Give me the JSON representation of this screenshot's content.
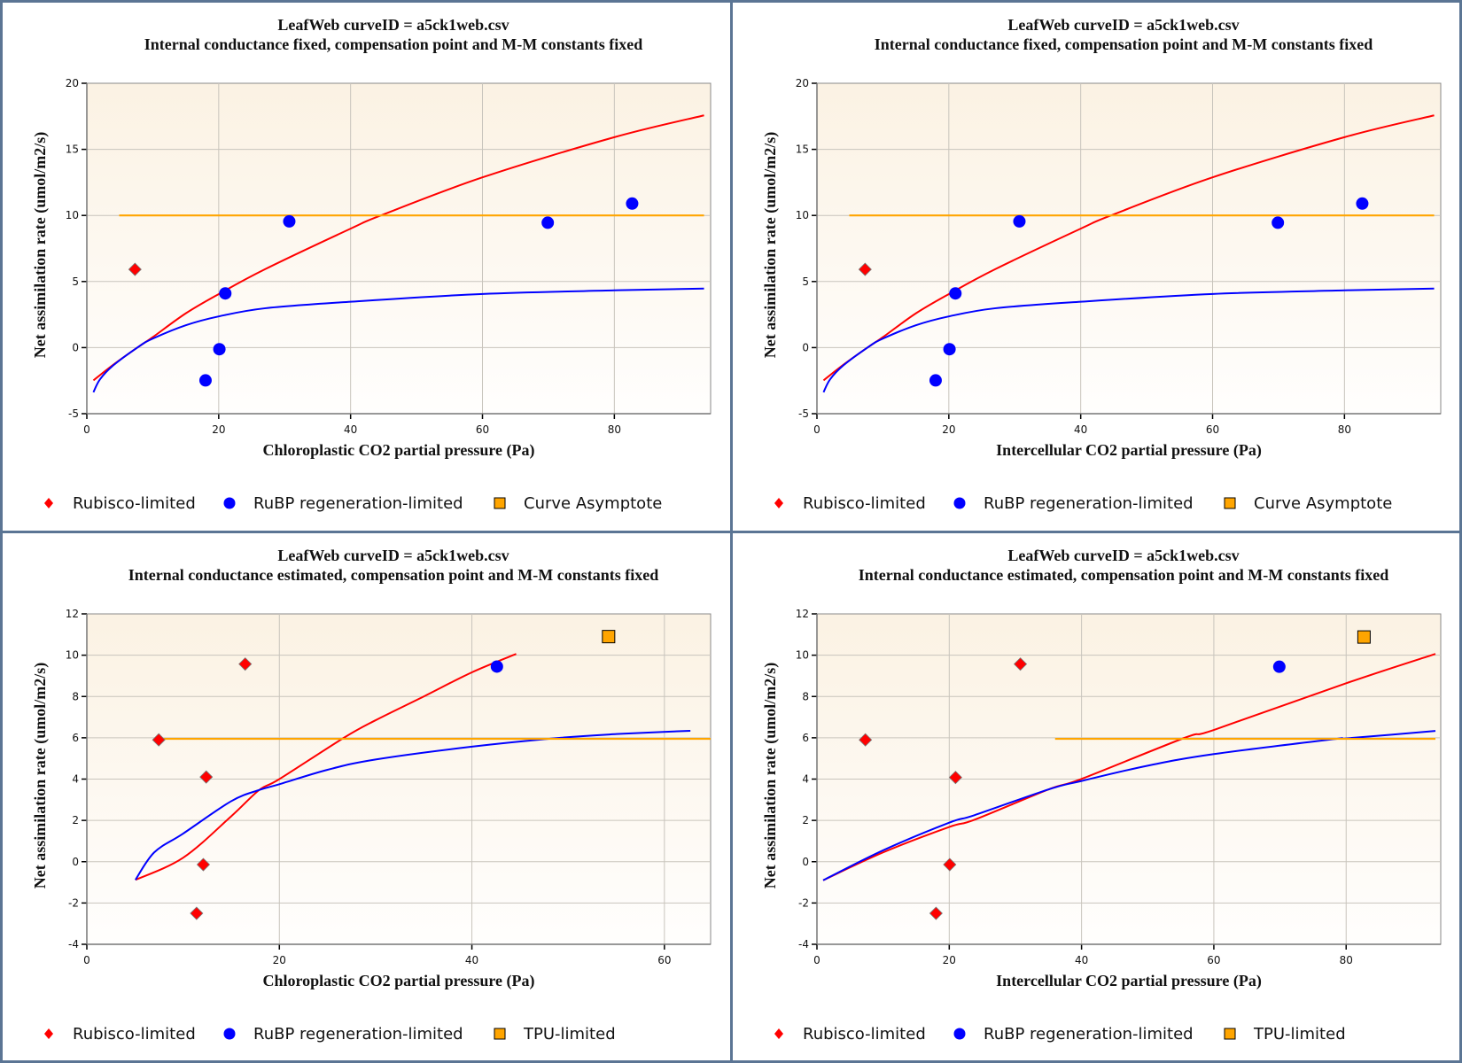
{
  "colors": {
    "frame": "#5b7594",
    "rubisco": "#ff0000",
    "rubp": "#0000ff",
    "asymptote": "#ffa500",
    "grid": "#c8c4bc",
    "plot_bg_top": "#fbf2e3",
    "plot_bg_bottom": "#fffefd"
  },
  "chart_data": [
    {
      "type": "scatter",
      "title": "LeafWeb curveID = a5ck1web.csv",
      "subtitle": "Internal conductance fixed, compensation point and M-M constants fixed",
      "xlabel": "Chloroplastic CO2 partial pressure (Pa)",
      "ylabel": "Net assimilation rate (umol/m2/s)",
      "xlim": [
        0,
        94.6
      ],
      "ylim": [
        -5,
        20
      ],
      "xticks": [
        0,
        20,
        40,
        60,
        80
      ],
      "yticks": [
        -5,
        0,
        5,
        10,
        15,
        20
      ],
      "grid": true,
      "legend_position": "bottom",
      "legend": [
        {
          "label": "Rubisco-limited",
          "marker": "diamond",
          "color": "#ff0000"
        },
        {
          "label": "RuBP regeneration-limited",
          "marker": "circle",
          "color": "#0000ff"
        },
        {
          "label": "Curve Asymptote",
          "marker": "square",
          "color": "#ffa500"
        }
      ],
      "points": [
        {
          "series": "Rubisco-limited",
          "x": 7.3,
          "y": 5.92
        },
        {
          "series": "RuBP regeneration-limited",
          "x": 18.0,
          "y": -2.48
        },
        {
          "series": "RuBP regeneration-limited",
          "x": 20.1,
          "y": -0.12
        },
        {
          "series": "RuBP regeneration-limited",
          "x": 21.0,
          "y": 4.1
        },
        {
          "series": "RuBP regeneration-limited",
          "x": 30.7,
          "y": 9.55
        },
        {
          "series": "RuBP regeneration-limited",
          "x": 69.9,
          "y": 9.45
        },
        {
          "series": "RuBP regeneration-limited",
          "x": 82.7,
          "y": 10.9
        }
      ],
      "lines": [
        {
          "name": "Rubisco-limited fit",
          "color": "#ff0000",
          "x": [
            1.0,
            4,
            7.8,
            10,
            15,
            20,
            27.1,
            40,
            44.6,
            60,
            80,
            93.6
          ],
          "y": [
            -2.48,
            -1.3,
            0.05,
            0.79,
            2.59,
            4.05,
            5.95,
            9.0,
            10.0,
            12.88,
            15.92,
            17.57
          ]
        },
        {
          "name": "RuBP regeneration-limited fit",
          "color": "#0000ff",
          "x": [
            1.0,
            2,
            4,
            7.8,
            10,
            15,
            20,
            27.1,
            40,
            60,
            80,
            93.6
          ],
          "y": [
            -3.38,
            -2.4,
            -1.35,
            0.05,
            0.68,
            1.69,
            2.36,
            2.98,
            3.47,
            4.06,
            4.33,
            4.47
          ]
        },
        {
          "name": "Curve Asymptote",
          "color": "#ffa500",
          "x": [
            4.9,
            93.6
          ],
          "y": [
            10,
            10
          ]
        }
      ]
    },
    {
      "type": "scatter",
      "title": "LeafWeb curveID = a5ck1web.csv",
      "subtitle": "Internal conductance fixed, compensation point and M-M constants fixed",
      "xlabel": "Intercellular CO2 partial pressure (Pa)",
      "ylabel": "Net assimilation rate (umol/m2/s)",
      "xlim": [
        0,
        94.6
      ],
      "ylim": [
        -5,
        20
      ],
      "xticks": [
        0,
        20,
        40,
        60,
        80
      ],
      "yticks": [
        -5,
        0,
        5,
        10,
        15,
        20
      ],
      "grid": true,
      "legend_position": "bottom",
      "legend": [
        {
          "label": "Rubisco-limited",
          "marker": "diamond",
          "color": "#ff0000"
        },
        {
          "label": "RuBP regeneration-limited",
          "marker": "circle",
          "color": "#0000ff"
        },
        {
          "label": "Curve Asymptote",
          "marker": "square",
          "color": "#ffa500"
        }
      ],
      "points": [
        {
          "series": "Rubisco-limited",
          "x": 7.3,
          "y": 5.92
        },
        {
          "series": "RuBP regeneration-limited",
          "x": 18.0,
          "y": -2.48
        },
        {
          "series": "RuBP regeneration-limited",
          "x": 20.1,
          "y": -0.12
        },
        {
          "series": "RuBP regeneration-limited",
          "x": 21.0,
          "y": 4.1
        },
        {
          "series": "RuBP regeneration-limited",
          "x": 30.7,
          "y": 9.55
        },
        {
          "series": "RuBP regeneration-limited",
          "x": 69.9,
          "y": 9.45
        },
        {
          "series": "RuBP regeneration-limited",
          "x": 82.7,
          "y": 10.9
        }
      ],
      "lines": [
        {
          "name": "Rubisco-limited fit",
          "color": "#ff0000",
          "x": [
            1.0,
            4,
            7.8,
            10,
            15,
            20,
            27.1,
            40,
            44.6,
            60,
            80,
            93.6
          ],
          "y": [
            -2.48,
            -1.3,
            0.05,
            0.79,
            2.59,
            4.05,
            5.95,
            9.0,
            10.0,
            12.88,
            15.92,
            17.57
          ]
        },
        {
          "name": "RuBP regeneration-limited fit",
          "color": "#0000ff",
          "x": [
            1.0,
            2,
            4,
            7.8,
            10,
            15,
            20,
            27.1,
            40,
            60,
            80,
            93.6
          ],
          "y": [
            -3.38,
            -2.4,
            -1.35,
            0.05,
            0.68,
            1.69,
            2.36,
            2.98,
            3.47,
            4.06,
            4.33,
            4.47
          ]
        },
        {
          "name": "Curve Asymptote",
          "color": "#ffa500",
          "x": [
            4.9,
            93.6
          ],
          "y": [
            10,
            10
          ]
        }
      ]
    },
    {
      "type": "scatter",
      "title": "LeafWeb curveID = a5ck1web.csv",
      "subtitle": "Internal conductance estimated, compensation point and M-M constants fixed",
      "xlabel": "Chloroplastic CO2 partial pressure (Pa)",
      "ylabel": "Net assimilation rate (umol/m2/s)",
      "xlim": [
        0,
        64.8
      ],
      "ylim": [
        -4,
        12
      ],
      "xticks": [
        0,
        20,
        40,
        60
      ],
      "yticks": [
        -4,
        -2,
        0,
        2,
        4,
        6,
        8,
        10,
        12
      ],
      "grid": true,
      "legend_position": "bottom",
      "legend": [
        {
          "label": "Rubisco-limited",
          "marker": "diamond",
          "color": "#ff0000"
        },
        {
          "label": "RuBP regeneration-limited",
          "marker": "circle",
          "color": "#0000ff"
        },
        {
          "label": "TPU-limited",
          "marker": "square",
          "color": "#ffa500"
        }
      ],
      "points": [
        {
          "series": "Rubisco-limited",
          "x": 7.47,
          "y": 5.9
        },
        {
          "series": "Rubisco-limited",
          "x": 11.4,
          "y": -2.5
        },
        {
          "series": "Rubisco-limited",
          "x": 12.1,
          "y": -0.14
        },
        {
          "series": "Rubisco-limited",
          "x": 12.4,
          "y": 4.1
        },
        {
          "series": "Rubisco-limited",
          "x": 16.45,
          "y": 9.57
        },
        {
          "series": "RuBP regeneration-limited",
          "x": 42.6,
          "y": 9.45
        },
        {
          "series": "TPU-limited",
          "x": 54.2,
          "y": 10.9
        }
      ],
      "lines": [
        {
          "name": "Rubisco-limited fit",
          "color": "#ff0000",
          "x": [
            5.05,
            10,
            15,
            17.9,
            20,
            26.7,
            30,
            35,
            40,
            44.6
          ],
          "y": [
            -0.88,
            0.19,
            2.2,
            3.47,
            4.0,
            6.0,
            6.85,
            8.0,
            9.17,
            10.06
          ]
        },
        {
          "name": "RuBP regeneration-limited fit",
          "color": "#0000ff",
          "x": [
            5.05,
            7,
            10,
            15,
            17.9,
            20,
            25,
            30,
            40,
            49.2,
            55,
            62.7
          ],
          "y": [
            -0.88,
            0.45,
            1.36,
            2.93,
            3.47,
            3.75,
            4.45,
            4.95,
            5.57,
            6.0,
            6.18,
            6.34
          ]
        },
        {
          "name": "TPU asymptote",
          "color": "#ffa500",
          "x": [
            7.47,
            64.8
          ],
          "y": [
            5.95,
            5.95
          ]
        }
      ]
    },
    {
      "type": "scatter",
      "title": "LeafWeb curveID = a5ck1web.csv",
      "subtitle": "Internal conductance estimated, compensation point and M-M constants fixed",
      "xlabel": "Intercellular CO2 partial pressure (Pa)",
      "ylabel": "Net assimilation rate (umol/m2/s)",
      "xlim": [
        0,
        94.3
      ],
      "ylim": [
        -4,
        12
      ],
      "xticks": [
        0,
        20,
        40,
        60,
        80
      ],
      "yticks": [
        -4,
        -2,
        0,
        2,
        4,
        6,
        8,
        10,
        12
      ],
      "grid": true,
      "legend_position": "bottom",
      "legend": [
        {
          "label": "Rubisco-limited",
          "marker": "diamond",
          "color": "#ff0000"
        },
        {
          "label": "RuBP regeneration-limited",
          "marker": "circle",
          "color": "#0000ff"
        },
        {
          "label": "TPU-limited",
          "marker": "square",
          "color": "#ffa500"
        }
      ],
      "points": [
        {
          "series": "Rubisco-limited",
          "x": 7.32,
          "y": 5.9
        },
        {
          "series": "Rubisco-limited",
          "x": 18.0,
          "y": -2.5
        },
        {
          "series": "Rubisco-limited",
          "x": 20.07,
          "y": -0.14
        },
        {
          "series": "Rubisco-limited",
          "x": 20.95,
          "y": 4.08
        },
        {
          "series": "Rubisco-limited",
          "x": 30.75,
          "y": 9.57
        },
        {
          "series": "RuBP regeneration-limited",
          "x": 69.9,
          "y": 9.44
        },
        {
          "series": "TPU-limited",
          "x": 82.7,
          "y": 10.88
        }
      ],
      "lines": [
        {
          "name": "Rubisco-limited fit",
          "color": "#ff0000",
          "x": [
            0.94,
            10,
            20,
            23.8,
            35,
            40,
            55.6,
            60,
            80,
            93.5
          ],
          "y": [
            -0.9,
            0.45,
            1.68,
            2.03,
            3.5,
            4.01,
            6.0,
            6.38,
            8.64,
            10.06
          ]
        },
        {
          "name": "RuBP regeneration-limited fit",
          "color": "#0000ff",
          "x": [
            0.94,
            10,
            20,
            23.8,
            35,
            40,
            50,
            60,
            78,
            80,
            93.5
          ],
          "y": [
            -0.9,
            0.55,
            1.89,
            2.25,
            3.5,
            3.91,
            4.65,
            5.21,
            5.93,
            5.97,
            6.33
          ]
        },
        {
          "name": "TPU asymptote",
          "color": "#ffa500",
          "x": [
            36.0,
            93.5
          ],
          "y": [
            5.95,
            5.95
          ]
        }
      ]
    }
  ]
}
